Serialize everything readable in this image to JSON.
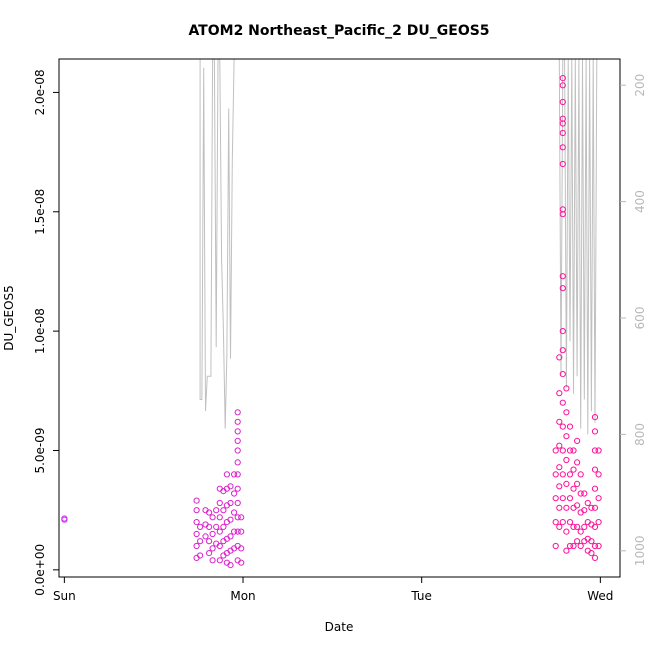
{
  "chart_data": {
    "type": "scatter",
    "title": "ATOM2 Northeast_Pacific_2 DU_GEOS5",
    "xlabel": "Date",
    "ylabel": "DU_GEOS5",
    "x_ticks": [
      "Sun",
      "Mon",
      "Tue",
      "Wed"
    ],
    "xlim_days": [
      -0.03,
      3.11
    ],
    "y_ticks": [
      "0.0e+00",
      "5.0e-09",
      "1.0e-08",
      "1.5e-08",
      "2.0e-08"
    ],
    "y_tick_values": [
      0,
      5e-09,
      1e-08,
      1.5e-08,
      2e-08
    ],
    "ylim": [
      -3e-10,
      2.14e-08
    ],
    "y2_ticks": [
      "200",
      "400",
      "600",
      "800",
      "1000"
    ],
    "y2_tick_values": [
      200,
      400,
      600,
      800,
      1000
    ],
    "y2lim": [
      1045,
      155
    ],
    "colors": {
      "early": "#cc33ee",
      "mid": "#dd22cc",
      "late": "#ff1199",
      "pressure_line": "#c0c0c0"
    },
    "series": [
      {
        "points": [
          [
            0.0,
            2.1e-09
          ],
          [
            0.0,
            2.15e-09
          ],
          [
            0.74,
            2.9e-09
          ],
          [
            0.74,
            2.5e-09
          ],
          [
            0.74,
            2e-09
          ],
          [
            0.74,
            1.5e-09
          ],
          [
            0.74,
            1e-09
          ],
          [
            0.74,
            5e-10
          ],
          [
            0.76,
            1.8e-09
          ],
          [
            0.76,
            1.2e-09
          ],
          [
            0.76,
            6e-10
          ],
          [
            0.79,
            2.5e-09
          ],
          [
            0.79,
            1.9e-09
          ],
          [
            0.79,
            1.4e-09
          ],
          [
            0.81,
            2.4e-09
          ],
          [
            0.81,
            1.8e-09
          ],
          [
            0.81,
            1.2e-09
          ],
          [
            0.81,
            7e-10
          ],
          [
            0.83,
            2.2e-09
          ],
          [
            0.83,
            1.5e-09
          ],
          [
            0.83,
            9e-10
          ],
          [
            0.83,
            4e-10
          ],
          [
            0.85,
            2.5e-09
          ],
          [
            0.85,
            1.8e-09
          ],
          [
            0.85,
            1.1e-09
          ],
          [
            0.87,
            3.4e-09
          ],
          [
            0.87,
            2.8e-09
          ],
          [
            0.87,
            2.2e-09
          ],
          [
            0.87,
            1.6e-09
          ],
          [
            0.87,
            1e-09
          ],
          [
            0.87,
            4e-10
          ],
          [
            0.89,
            3.3e-09
          ],
          [
            0.89,
            2.5e-09
          ],
          [
            0.89,
            1.8e-09
          ],
          [
            0.89,
            1.2e-09
          ],
          [
            0.89,
            6e-10
          ],
          [
            0.91,
            4e-09
          ],
          [
            0.91,
            3.4e-09
          ],
          [
            0.91,
            2.7e-09
          ],
          [
            0.91,
            2e-09
          ],
          [
            0.91,
            1.3e-09
          ],
          [
            0.91,
            7e-10
          ],
          [
            0.91,
            3e-10
          ],
          [
            0.93,
            3.5e-09
          ],
          [
            0.93,
            2.8e-09
          ],
          [
            0.93,
            2.1e-09
          ],
          [
            0.93,
            1.4e-09
          ],
          [
            0.93,
            8e-10
          ],
          [
            0.93,
            2e-10
          ],
          [
            0.95,
            4e-09
          ],
          [
            0.95,
            3.2e-09
          ],
          [
            0.95,
            2.4e-09
          ],
          [
            0.95,
            1.6e-09
          ],
          [
            0.95,
            9e-10
          ],
          [
            0.97,
            6.6e-09
          ],
          [
            0.97,
            6.2e-09
          ],
          [
            0.97,
            5.8e-09
          ],
          [
            0.97,
            5.4e-09
          ],
          [
            0.97,
            5e-09
          ],
          [
            0.97,
            4.5e-09
          ],
          [
            0.97,
            4e-09
          ],
          [
            0.97,
            3.4e-09
          ],
          [
            0.97,
            2.8e-09
          ],
          [
            0.97,
            2.2e-09
          ],
          [
            0.97,
            1.6e-09
          ],
          [
            0.97,
            1e-09
          ],
          [
            0.97,
            4e-10
          ],
          [
            0.99,
            2.2e-09
          ],
          [
            0.99,
            1.6e-09
          ],
          [
            0.99,
            9e-10
          ],
          [
            0.99,
            3e-10
          ]
        ]
      },
      {
        "points": [
          [
            2.75,
            5e-09
          ],
          [
            2.75,
            4e-09
          ],
          [
            2.75,
            3e-09
          ],
          [
            2.75,
            2e-09
          ],
          [
            2.75,
            1e-09
          ],
          [
            2.77,
            8.9e-09
          ],
          [
            2.77,
            7.4e-09
          ],
          [
            2.77,
            6.2e-09
          ],
          [
            2.77,
            5.2e-09
          ],
          [
            2.77,
            4.3e-09
          ],
          [
            2.77,
            3.5e-09
          ],
          [
            2.77,
            2.6e-09
          ],
          [
            2.77,
            1.8e-09
          ],
          [
            2.79,
            2.06e-08
          ],
          [
            2.79,
            2.03e-08
          ],
          [
            2.79,
            1.96e-08
          ],
          [
            2.79,
            1.89e-08
          ],
          [
            2.79,
            1.87e-08
          ],
          [
            2.79,
            1.83e-08
          ],
          [
            2.79,
            1.77e-08
          ],
          [
            2.79,
            1.7e-08
          ],
          [
            2.79,
            1.51e-08
          ],
          [
            2.79,
            1.49e-08
          ],
          [
            2.79,
            1.23e-08
          ],
          [
            2.79,
            1.18e-08
          ],
          [
            2.79,
            1e-08
          ],
          [
            2.79,
            9.2e-09
          ],
          [
            2.79,
            8.2e-09
          ],
          [
            2.79,
            7e-09
          ],
          [
            2.79,
            6e-09
          ],
          [
            2.79,
            5e-09
          ],
          [
            2.79,
            4e-09
          ],
          [
            2.79,
            3e-09
          ],
          [
            2.79,
            2e-09
          ],
          [
            2.81,
            7.6e-09
          ],
          [
            2.81,
            6.6e-09
          ],
          [
            2.81,
            5.6e-09
          ],
          [
            2.81,
            4.6e-09
          ],
          [
            2.81,
            3.6e-09
          ],
          [
            2.81,
            2.6e-09
          ],
          [
            2.81,
            1.6e-09
          ],
          [
            2.81,
            8e-10
          ],
          [
            2.83,
            6e-09
          ],
          [
            2.83,
            5e-09
          ],
          [
            2.83,
            4e-09
          ],
          [
            2.83,
            3e-09
          ],
          [
            2.83,
            2e-09
          ],
          [
            2.83,
            1e-09
          ],
          [
            2.85,
            5e-09
          ],
          [
            2.85,
            4.2e-09
          ],
          [
            2.85,
            3.4e-09
          ],
          [
            2.85,
            2.6e-09
          ],
          [
            2.85,
            1.8e-09
          ],
          [
            2.85,
            1e-09
          ],
          [
            2.87,
            5.4e-09
          ],
          [
            2.87,
            4.5e-09
          ],
          [
            2.87,
            3.6e-09
          ],
          [
            2.87,
            2.7e-09
          ],
          [
            2.87,
            1.8e-09
          ],
          [
            2.87,
            1.2e-09
          ],
          [
            2.89,
            4e-09
          ],
          [
            2.89,
            3.2e-09
          ],
          [
            2.89,
            2.4e-09
          ],
          [
            2.89,
            1.6e-09
          ],
          [
            2.89,
            1e-09
          ],
          [
            2.91,
            3.2e-09
          ],
          [
            2.91,
            2.5e-09
          ],
          [
            2.91,
            1.8e-09
          ],
          [
            2.91,
            1.2e-09
          ],
          [
            2.93,
            2.8e-09
          ],
          [
            2.93,
            2e-09
          ],
          [
            2.93,
            1.3e-09
          ],
          [
            2.93,
            8e-10
          ],
          [
            2.95,
            2.6e-09
          ],
          [
            2.95,
            1.9e-09
          ],
          [
            2.95,
            1.2e-09
          ],
          [
            2.95,
            7e-10
          ],
          [
            2.97,
            6.4e-09
          ],
          [
            2.97,
            5.8e-09
          ],
          [
            2.97,
            5e-09
          ],
          [
            2.97,
            4.2e-09
          ],
          [
            2.97,
            3.4e-09
          ],
          [
            2.97,
            2.6e-09
          ],
          [
            2.97,
            1.8e-09
          ],
          [
            2.97,
            1e-09
          ],
          [
            2.97,
            5e-10
          ],
          [
            2.99,
            5e-09
          ],
          [
            2.99,
            4e-09
          ],
          [
            2.99,
            3e-09
          ],
          [
            2.99,
            2e-09
          ],
          [
            2.99,
            1e-09
          ]
        ]
      }
    ],
    "pressure_series": {
      "segments": [
        [
          [
            0.76,
            150
          ],
          [
            0.76,
            740
          ],
          [
            0.77,
            740
          ],
          [
            0.78,
            170
          ],
          [
            0.79,
            760
          ],
          [
            0.8,
            700
          ],
          [
            0.82,
            700
          ],
          [
            0.83,
            150
          ],
          [
            0.84,
            150
          ],
          [
            0.85,
            650
          ],
          [
            0.86,
            150
          ],
          [
            0.87,
            150
          ],
          [
            0.88,
            500
          ],
          [
            0.89,
            620
          ],
          [
            0.9,
            790
          ],
          [
            0.91,
            660
          ],
          [
            0.92,
            240
          ],
          [
            0.93,
            670
          ],
          [
            0.94,
            330
          ],
          [
            0.95,
            150
          ]
        ],
        [
          [
            2.77,
            150
          ],
          [
            2.78,
            700
          ],
          [
            2.79,
            150
          ],
          [
            2.8,
            150
          ],
          [
            2.81,
            720
          ],
          [
            2.82,
            150
          ],
          [
            2.83,
            640
          ],
          [
            2.84,
            150
          ],
          [
            2.85,
            730
          ],
          [
            2.86,
            150
          ],
          [
            2.87,
            700
          ],
          [
            2.88,
            150
          ],
          [
            2.89,
            790
          ],
          [
            2.9,
            150
          ],
          [
            2.91,
            740
          ],
          [
            2.92,
            150
          ],
          [
            2.93,
            800
          ],
          [
            2.94,
            150
          ],
          [
            2.95,
            760
          ],
          [
            2.96,
            150
          ],
          [
            2.97,
            780
          ],
          [
            2.98,
            150
          ]
        ]
      ]
    }
  }
}
